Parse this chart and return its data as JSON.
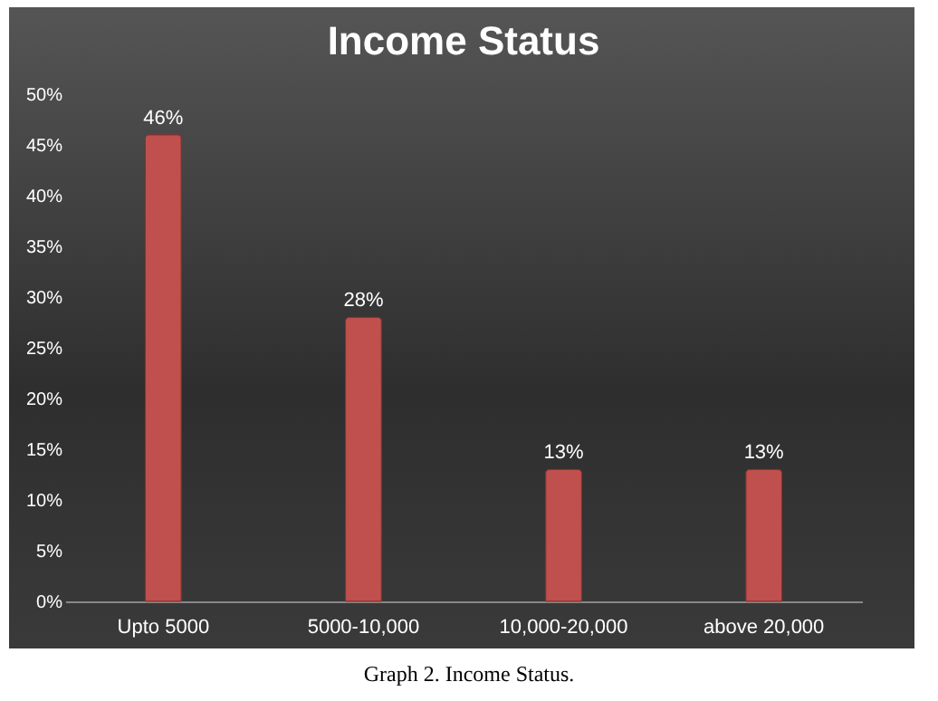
{
  "chart_data": {
    "type": "bar",
    "title": "Income Status",
    "categories": [
      "Upto 5000",
      "5000-10,000",
      "10,000-20,000",
      "above 20,000"
    ],
    "values": [
      46,
      28,
      13,
      13
    ],
    "value_labels": [
      "46%",
      "28%",
      "13%",
      "13%"
    ],
    "color": "#c0504d",
    "ylim": [
      0,
      50
    ],
    "yticks": [
      {
        "value": 0,
        "label": "0%"
      },
      {
        "value": 5,
        "label": "5%"
      },
      {
        "value": 10,
        "label": "10%"
      },
      {
        "value": 15,
        "label": "15%"
      },
      {
        "value": 20,
        "label": "20%"
      },
      {
        "value": 25,
        "label": "25%"
      },
      {
        "value": 30,
        "label": "30%"
      },
      {
        "value": 35,
        "label": "35%"
      },
      {
        "value": 40,
        "label": "40%"
      },
      {
        "value": 45,
        "label": "45%"
      },
      {
        "value": 50,
        "label": "50%"
      }
    ],
    "grid": false,
    "annotations": [
      "Graph 2. Income Status."
    ]
  }
}
